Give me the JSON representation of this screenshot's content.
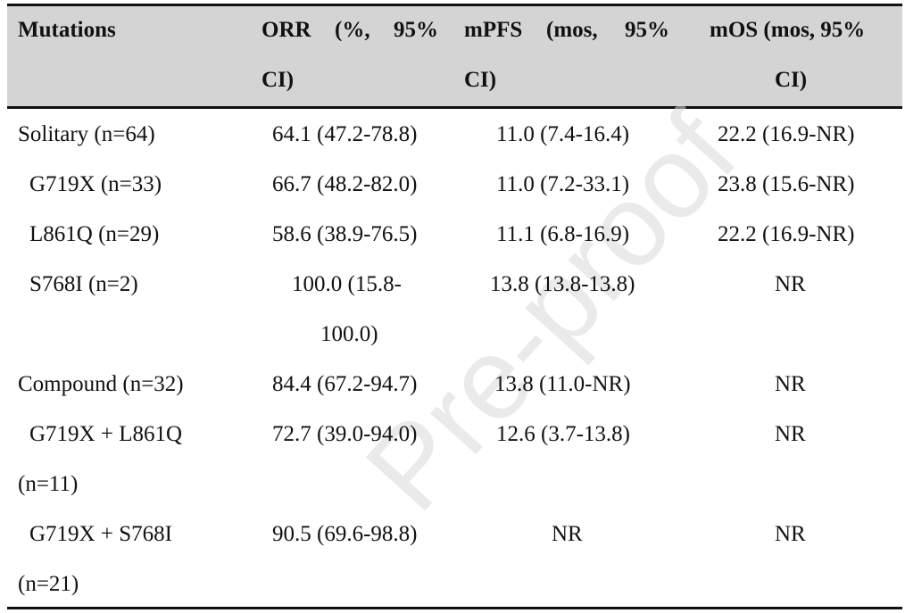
{
  "watermark": "Pre-proof",
  "header": {
    "col1": "Mutations",
    "col2_line1_a": "ORR",
    "col2_line1_b": "(%,",
    "col2_line1_c": "95%",
    "col2_line2": "CI)",
    "col3_line1_a": "mPFS",
    "col3_line1_b": "(mos,",
    "col3_line1_c": "95%",
    "col3_line2": "CI)",
    "col4_line1": "mOS (mos, 95%",
    "col4_line2": "CI)"
  },
  "rows": [
    {
      "mutation": "Solitary (n=64)",
      "orr": "64.1 (47.2-78.8)",
      "mpfs": "11.0 (7.4-16.4)",
      "mos": "22.2 (16.9-NR)"
    },
    {
      "mutation": "G719X (n=33)",
      "orr": "66.7 (48.2-82.0)",
      "mpfs": "11.0 (7.2-33.1)",
      "mos": "23.8 (15.6-NR)"
    },
    {
      "mutation": "L861Q (n=29)",
      "orr": "58.6 (38.9-76.5)",
      "mpfs": "11.1 (6.8-16.9)",
      "mos": "22.2 (16.9-NR)"
    },
    {
      "mutation": "S768I (n=2)",
      "orr_line1": "100.0 (15.8-",
      "orr_line2": "100.0)",
      "mpfs": "13.8 (13.8-13.8)",
      "mos": "NR"
    },
    {
      "mutation": "Compound (n=32)",
      "orr": "84.4 (67.2-94.7)",
      "mpfs": "13.8 (11.0-NR)",
      "mos": "NR"
    },
    {
      "mutation_line1": "G719X + L861Q",
      "mutation_line2": "(n=11)",
      "orr": "72.7 (39.0-94.0)",
      "mpfs": "12.6 (3.7-13.8)",
      "mos": "NR"
    },
    {
      "mutation_line1": "G719X + S768I",
      "mutation_line2": "(n=21)",
      "orr": "90.5 (69.6-98.8)",
      "mpfs": "NR",
      "mos": "NR"
    }
  ]
}
